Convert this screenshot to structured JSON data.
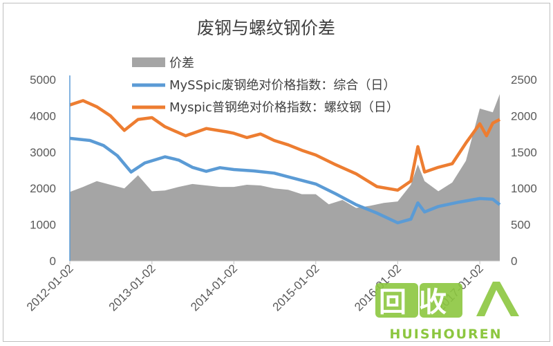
{
  "chart_data": {
    "type": "line",
    "title": "废钢与螺纹钢价差",
    "x_ticks": [
      "2012-01-02",
      "2013-01-02",
      "2014-01-02",
      "2015-01-02",
      "2016-01-02",
      "2017-01-02"
    ],
    "left_axis": {
      "range": [
        0,
        5000
      ],
      "ticks": [
        "0",
        "1000",
        "2000",
        "3000",
        "4000",
        "5000"
      ]
    },
    "right_axis": {
      "range": [
        0,
        2500
      ],
      "ticks": [
        "0",
        "500",
        "1000",
        "1500",
        "2000",
        "2500"
      ]
    },
    "legend_position": "top",
    "grid": false,
    "series": [
      {
        "name": "价差",
        "kind": "area",
        "axis": "right",
        "color": "#a5a5a5",
        "points": [
          [
            "2012-01-02",
            950
          ],
          [
            "2012-03-01",
            1020
          ],
          [
            "2012-05-01",
            1100
          ],
          [
            "2012-07-01",
            1050
          ],
          [
            "2012-09-01",
            1000
          ],
          [
            "2012-11-01",
            1180
          ],
          [
            "2013-01-02",
            960
          ],
          [
            "2013-03-01",
            970
          ],
          [
            "2013-05-01",
            1020
          ],
          [
            "2013-07-01",
            1060
          ],
          [
            "2013-09-01",
            1040
          ],
          [
            "2013-11-01",
            1020
          ],
          [
            "2014-01-02",
            1020
          ],
          [
            "2014-03-01",
            1050
          ],
          [
            "2014-05-01",
            1040
          ],
          [
            "2014-07-01",
            1000
          ],
          [
            "2014-09-01",
            980
          ],
          [
            "2014-11-01",
            920
          ],
          [
            "2015-01-02",
            920
          ],
          [
            "2015-03-01",
            780
          ],
          [
            "2015-05-01",
            840
          ],
          [
            "2015-07-01",
            730
          ],
          [
            "2015-09-01",
            760
          ],
          [
            "2015-11-01",
            800
          ],
          [
            "2016-01-02",
            820
          ],
          [
            "2016-03-01",
            1050
          ],
          [
            "2016-04-01",
            1330
          ],
          [
            "2016-05-01",
            1100
          ],
          [
            "2016-07-01",
            960
          ],
          [
            "2016-09-01",
            1080
          ],
          [
            "2016-11-01",
            1380
          ],
          [
            "2017-01-02",
            2100
          ],
          [
            "2017-03-01",
            2050
          ],
          [
            "2017-04-01",
            2300
          ]
        ]
      },
      {
        "name": "MySSpic废钢绝对价格指数：综合（日）",
        "kind": "line",
        "axis": "left",
        "color": "#5b9bd5",
        "points": [
          [
            "2012-01-02",
            3380
          ],
          [
            "2012-04-01",
            3320
          ],
          [
            "2012-06-01",
            3180
          ],
          [
            "2012-08-01",
            2900
          ],
          [
            "2012-10-01",
            2450
          ],
          [
            "2012-12-01",
            2700
          ],
          [
            "2013-03-01",
            2870
          ],
          [
            "2013-05-01",
            2780
          ],
          [
            "2013-07-01",
            2580
          ],
          [
            "2013-09-01",
            2470
          ],
          [
            "2013-11-01",
            2570
          ],
          [
            "2014-01-02",
            2520
          ],
          [
            "2014-04-01",
            2480
          ],
          [
            "2014-07-01",
            2420
          ],
          [
            "2014-10-01",
            2270
          ],
          [
            "2015-01-02",
            2120
          ],
          [
            "2015-04-01",
            1850
          ],
          [
            "2015-07-01",
            1550
          ],
          [
            "2015-10-01",
            1320
          ],
          [
            "2016-01-02",
            1050
          ],
          [
            "2016-03-01",
            1150
          ],
          [
            "2016-04-01",
            1600
          ],
          [
            "2016-05-01",
            1350
          ],
          [
            "2016-07-01",
            1500
          ],
          [
            "2016-10-01",
            1620
          ],
          [
            "2017-01-02",
            1720
          ],
          [
            "2017-03-01",
            1700
          ],
          [
            "2017-04-01",
            1550
          ]
        ]
      },
      {
        "name": "Myspic普钢绝对价格指数：螺纹钢（日）",
        "kind": "line",
        "axis": "left",
        "color": "#ed7d31",
        "points": [
          [
            "2012-01-02",
            4300
          ],
          [
            "2012-03-01",
            4420
          ],
          [
            "2012-05-01",
            4250
          ],
          [
            "2012-07-01",
            4000
          ],
          [
            "2012-09-01",
            3600
          ],
          [
            "2012-11-01",
            3900
          ],
          [
            "2013-01-02",
            3950
          ],
          [
            "2013-03-01",
            3700
          ],
          [
            "2013-06-01",
            3450
          ],
          [
            "2013-09-01",
            3650
          ],
          [
            "2013-12-01",
            3560
          ],
          [
            "2014-01-02",
            3520
          ],
          [
            "2014-03-01",
            3400
          ],
          [
            "2014-05-01",
            3500
          ],
          [
            "2014-07-01",
            3320
          ],
          [
            "2014-09-01",
            3200
          ],
          [
            "2014-11-01",
            3050
          ],
          [
            "2015-01-02",
            2920
          ],
          [
            "2015-04-01",
            2650
          ],
          [
            "2015-07-01",
            2400
          ],
          [
            "2015-10-01",
            2050
          ],
          [
            "2016-01-02",
            1950
          ],
          [
            "2016-03-01",
            2200
          ],
          [
            "2016-04-01",
            3150
          ],
          [
            "2016-05-01",
            2450
          ],
          [
            "2016-07-01",
            2580
          ],
          [
            "2016-09-01",
            2680
          ],
          [
            "2016-11-01",
            3250
          ],
          [
            "2017-01-02",
            3780
          ],
          [
            "2017-02-01",
            3450
          ],
          [
            "2017-03-01",
            3800
          ],
          [
            "2017-04-01",
            3900
          ]
        ]
      }
    ]
  },
  "watermark": {
    "cn_text": "回收",
    "en_text": "HUISHOUREN",
    "color": "#8cc63f"
  }
}
